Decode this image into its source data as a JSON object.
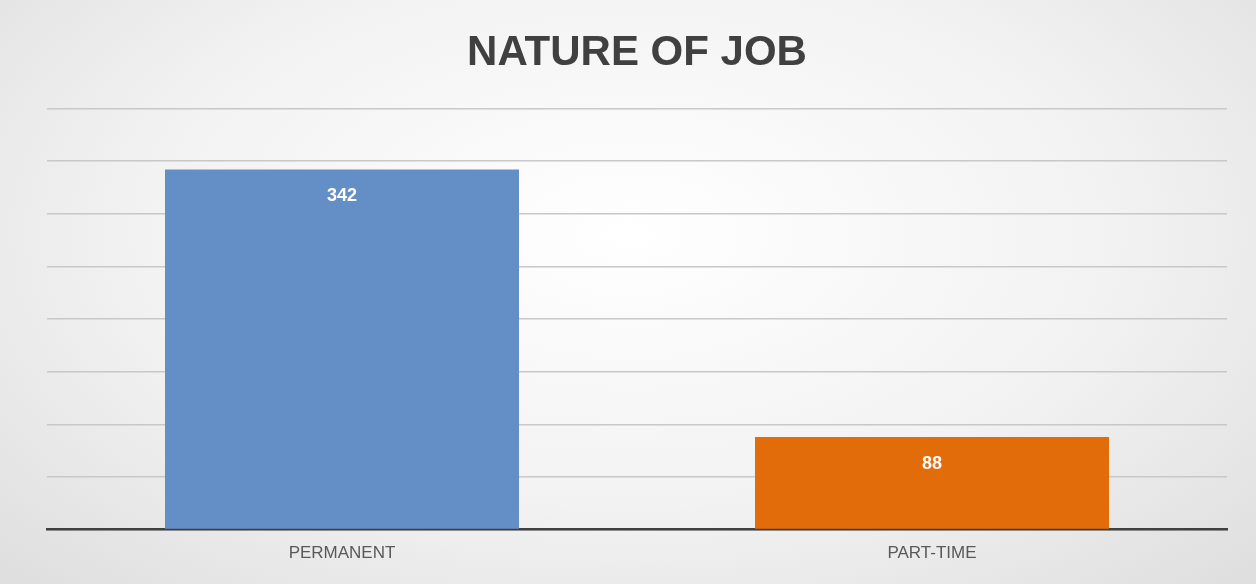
{
  "chart_data": {
    "type": "bar",
    "title": "NATURE OF JOB",
    "categories": [
      "PERMANENT",
      "PART-TIME"
    ],
    "values": [
      342,
      88
    ],
    "colors": [
      "#648fc6",
      "#e36c0a"
    ],
    "ylim": [
      0,
      400
    ],
    "yticks": [
      {
        "value": 0,
        "label": null
      },
      {
        "value": 50,
        "label": null
      },
      {
        "value": 100,
        "label": null
      },
      {
        "value": 150,
        "label": null
      },
      {
        "value": 200,
        "label": null
      },
      {
        "value": 250,
        "label": null
      },
      {
        "value": 300,
        "label": null
      },
      {
        "value": 350,
        "label": null
      },
      {
        "value": 400,
        "label": null
      }
    ],
    "grid": "y",
    "legend": false,
    "tick_labels": "x",
    "data_labels": true
  }
}
